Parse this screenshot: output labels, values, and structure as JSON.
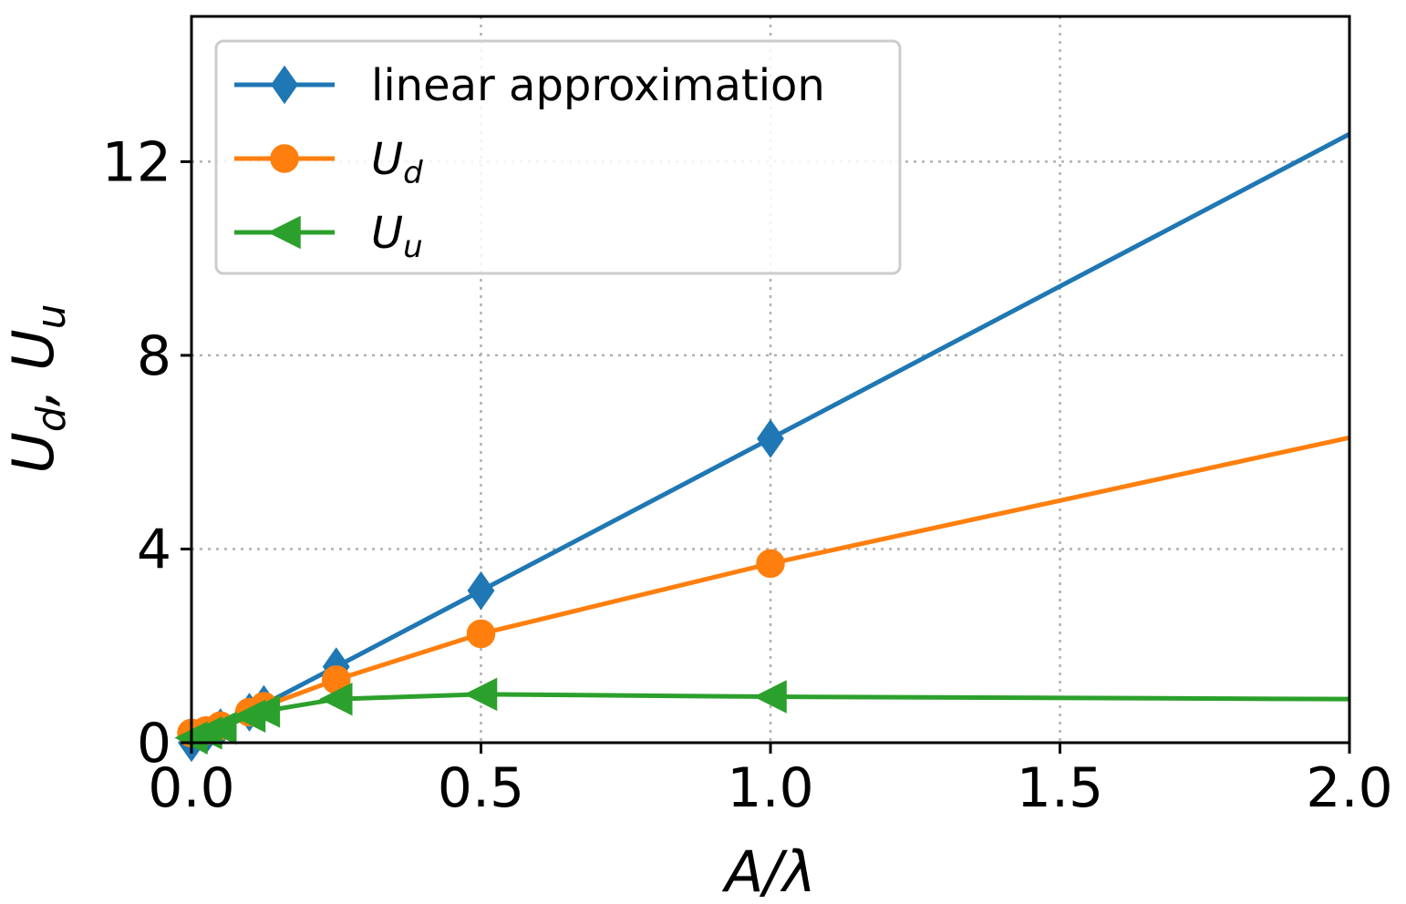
{
  "chart_data": {
    "type": "line",
    "xlabel": "A/λ",
    "ylabel": "U_d, U_u",
    "xlim": [
      0.0,
      2.0
    ],
    "ylim": [
      0,
      15
    ],
    "xticks": [
      0.0,
      0.5,
      1.0,
      1.5,
      2.0
    ],
    "xtick_labels": [
      "0.0",
      "0.5",
      "1.0",
      "1.5",
      "2.0"
    ],
    "yticks": [
      0,
      4,
      8,
      12
    ],
    "ytick_labels": [
      "0",
      "4",
      "8",
      "12"
    ],
    "grid": true,
    "legend_position": "top-left",
    "series": [
      {
        "name": "linear approximation",
        "label_main": "linear approximation",
        "label_sub": "",
        "color": "#1f77b4",
        "marker": "diamond",
        "x": [
          0.0,
          0.025,
          0.05,
          0.1,
          0.125,
          0.25,
          0.5,
          1.0,
          2.0
        ],
        "y": [
          0.0,
          0.16,
          0.31,
          0.63,
          0.79,
          1.57,
          3.14,
          6.28,
          12.57
        ],
        "marker_count": 8
      },
      {
        "name": "U_d",
        "label_main": "U",
        "label_sub": "d",
        "color": "#ff7f0e",
        "marker": "circle",
        "x": [
          0.0,
          0.025,
          0.05,
          0.1,
          0.125,
          0.25,
          0.5,
          1.0,
          2.0
        ],
        "y": [
          0.2,
          0.25,
          0.35,
          0.63,
          0.75,
          1.3,
          2.25,
          3.7,
          6.3
        ],
        "marker_count": 8
      },
      {
        "name": "U_u",
        "label_main": "U",
        "label_sub": "u",
        "color": "#2ca02c",
        "marker": "triangle-left",
        "x": [
          0.0,
          0.025,
          0.05,
          0.1,
          0.125,
          0.25,
          0.5,
          1.0,
          2.0
        ],
        "y": [
          0.1,
          0.2,
          0.3,
          0.55,
          0.65,
          0.9,
          1.0,
          0.95,
          0.9
        ],
        "marker_count": 8
      }
    ]
  }
}
